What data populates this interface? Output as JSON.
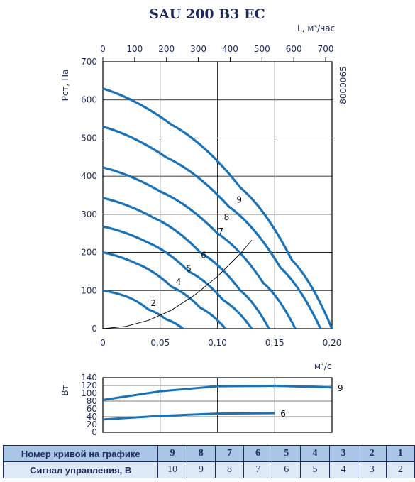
{
  "title": "SAU 200 B3 EC",
  "code": "8000065",
  "chart_data": [
    {
      "type": "line",
      "ylabel": "Рст, Па",
      "xlabel_bottom": "м³/с",
      "xlabel_top": "L, м³/час",
      "xlim": [
        0,
        0.2
      ],
      "ylim": [
        0,
        700
      ],
      "x_ticks": [
        "0",
        "0,05",
        "0,10",
        "0,15",
        "0,20"
      ],
      "x_top_ticks": [
        "0",
        "100",
        "200",
        "300",
        "400",
        "500",
        "600",
        "700"
      ],
      "y_ticks": [
        "0",
        "100",
        "200",
        "300",
        "400",
        "500",
        "600",
        "700"
      ],
      "grid": true,
      "series": [
        {
          "name": "1",
          "x": [
            0,
            0.02,
            0.04,
            0.055,
            0.07
          ],
          "y": [
            100,
            85,
            50,
            25,
            0
          ]
        },
        {
          "name": "2",
          "x": [
            0,
            0.03,
            0.06,
            0.085,
            0.107
          ],
          "y": [
            200,
            170,
            110,
            55,
            0
          ]
        },
        {
          "name": "3",
          "x": [
            0,
            0.04,
            0.075,
            0.105,
            0.13
          ],
          "y": [
            268,
            225,
            150,
            75,
            0
          ]
        },
        {
          "name": "4",
          "x": [
            0,
            0.045,
            0.085,
            0.12,
            0.145
          ],
          "y": [
            343,
            290,
            200,
            100,
            0
          ]
        },
        {
          "name": "5",
          "x": [
            0,
            0.05,
            0.1,
            0.14,
            0.168
          ],
          "y": [
            423,
            360,
            250,
            120,
            0
          ]
        },
        {
          "name": "6",
          "x": [
            0,
            0.055,
            0.11,
            0.155,
            0.19
          ],
          "y": [
            530,
            450,
            320,
            160,
            0
          ]
        },
        {
          "name": "7",
          "x": [
            0,
            0.06,
            0.12,
            0.165,
            0.2
          ],
          "y": [
            630,
            535,
            370,
            180,
            0
          ]
        }
      ],
      "curve_labels": [
        {
          "text": "2",
          "x": 0.044,
          "y": 60
        },
        {
          "text": "4",
          "x": 0.066,
          "y": 115
        },
        {
          "text": "5",
          "x": 0.075,
          "y": 150
        },
        {
          "text": "6",
          "x": 0.088,
          "y": 185
        },
        {
          "text": "7",
          "x": 0.103,
          "y": 248
        },
        {
          "text": "8",
          "x": 0.108,
          "y": 285
        },
        {
          "text": "9",
          "x": 0.119,
          "y": 330
        }
      ],
      "system_curve": {
        "x": [
          0,
          0.02,
          0.04,
          0.06,
          0.08,
          0.1,
          0.12,
          0.13
        ],
        "y": [
          0,
          6,
          22,
          49,
          88,
          137,
          197,
          232
        ]
      }
    },
    {
      "type": "line",
      "ylabel": "Вт",
      "xlim": [
        0,
        0.2
      ],
      "ylim": [
        0,
        140
      ],
      "y_ticks": [
        "0",
        "20",
        "40",
        "60",
        "80",
        "100",
        "120",
        "140"
      ],
      "grid": true,
      "series": [
        {
          "name": "9",
          "x": [
            0,
            0.05,
            0.1,
            0.15,
            0.2
          ],
          "y": [
            83,
            105,
            118,
            119,
            115
          ]
        },
        {
          "name": "6",
          "x": [
            0,
            0.05,
            0.1,
            0.15
          ],
          "y": [
            33,
            42,
            48,
            49
          ]
        }
      ]
    }
  ],
  "table": {
    "row1_label": "Номер кривой на графике",
    "row1": [
      "9",
      "8",
      "7",
      "6",
      "5",
      "4",
      "3",
      "2",
      "1"
    ],
    "row2_label": "Сигнал управления, В",
    "row2": [
      "10",
      "9",
      "8",
      "7",
      "6",
      "5",
      "4",
      "3",
      "2"
    ]
  },
  "colors": {
    "curve": "#1a73b8",
    "frame": "#000000",
    "text": "#1e2a5a"
  }
}
